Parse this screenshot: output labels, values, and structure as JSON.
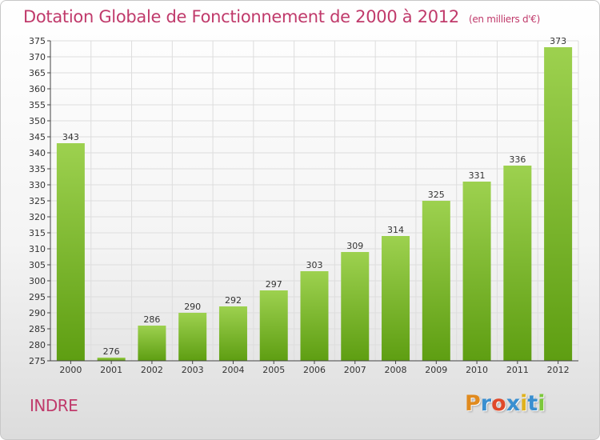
{
  "header": {
    "title": "Dotation Globale de Fonctionnement de 2000 à 2012",
    "subtitle": "(en milliers d'€)"
  },
  "footer": {
    "place": "INDRE",
    "logo_letters": [
      "P",
      "r",
      "o",
      "x",
      "i",
      "t",
      "i"
    ]
  },
  "colors": {
    "title": "#c03a6b",
    "bar_top": "#9dd14f",
    "bar_bottom": "#5e9e12",
    "grid": "#dddddd",
    "logo": [
      "#e08a1e",
      "#3a8fd0",
      "#e04a2a",
      "#3a8fd0",
      "#e0b21e",
      "#3a8fd0",
      "#7cc83a"
    ]
  },
  "chart_data": {
    "type": "bar",
    "title": "Dotation Globale de Fonctionnement de 2000 à 2012",
    "subtitle": "(en milliers d'€)",
    "categories": [
      "2000",
      "2001",
      "2002",
      "2003",
      "2004",
      "2005",
      "2006",
      "2007",
      "2008",
      "2009",
      "2010",
      "2011",
      "2012"
    ],
    "values": [
      343,
      276,
      286,
      290,
      292,
      297,
      303,
      309,
      314,
      325,
      331,
      336,
      373
    ],
    "ylim": [
      275,
      375
    ],
    "yticks": [
      275,
      280,
      285,
      290,
      295,
      300,
      305,
      310,
      315,
      320,
      325,
      330,
      335,
      340,
      345,
      350,
      355,
      360,
      365,
      370,
      375
    ],
    "grid": true,
    "xlabel": "",
    "ylabel": ""
  }
}
